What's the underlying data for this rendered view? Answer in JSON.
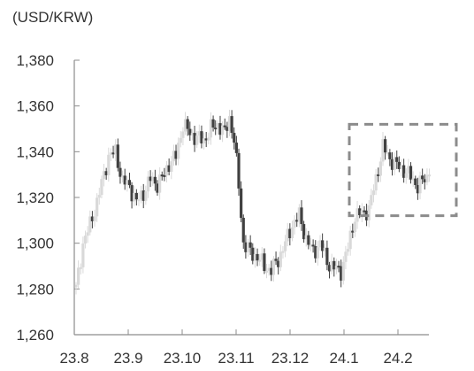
{
  "chart_data": {
    "type": "candlestick",
    "unit_label": "(USD/KRW)",
    "title": "",
    "xlabel": "",
    "ylabel": "",
    "ylim": [
      1260,
      1380
    ],
    "y_ticks": [
      "1,260",
      "1,280",
      "1,300",
      "1,320",
      "1,340",
      "1,360",
      "1,380"
    ],
    "y_tick_values": [
      1260,
      1280,
      1300,
      1320,
      1340,
      1360,
      1380
    ],
    "x_ticks": [
      "23.8",
      "23.9",
      "23.10",
      "23.11",
      "23.12",
      "24.1",
      "24.2"
    ],
    "grid": false,
    "legend": "none",
    "colors": {
      "up": "#d9d9d9",
      "down": "#404040",
      "axis": "#8c8c8c",
      "highlight_box": "#8c8c8c"
    },
    "highlight_box": {
      "x_start": "24.1",
      "x_end": "24.2+",
      "y_range": [
        1312,
        1352
      ]
    },
    "anchors": [
      [
        0,
        1280
      ],
      [
        3,
        1300
      ],
      [
        6,
        1308
      ],
      [
        9,
        1318
      ],
      [
        12,
        1330
      ],
      [
        14,
        1338
      ],
      [
        17,
        1340
      ],
      [
        20,
        1327
      ],
      [
        23,
        1325
      ],
      [
        26,
        1318
      ],
      [
        29,
        1322
      ],
      [
        32,
        1328
      ],
      [
        35,
        1326
      ],
      [
        38,
        1330
      ],
      [
        40,
        1335
      ],
      [
        43,
        1338
      ],
      [
        46,
        1352
      ],
      [
        49,
        1348
      ],
      [
        52,
        1346
      ],
      [
        55,
        1345
      ],
      [
        58,
        1350
      ],
      [
        61,
        1352
      ],
      [
        64,
        1348
      ],
      [
        66,
        1355
      ],
      [
        68,
        1345
      ],
      [
        70,
        1325
      ],
      [
        72,
        1300
      ],
      [
        75,
        1296
      ],
      [
        78,
        1294
      ],
      [
        81,
        1290
      ],
      [
        84,
        1288
      ],
      [
        87,
        1293
      ],
      [
        90,
        1300
      ],
      [
        93,
        1308
      ],
      [
        96,
        1312
      ],
      [
        99,
        1302
      ],
      [
        102,
        1296
      ],
      [
        105,
        1300
      ],
      [
        108,
        1292
      ],
      [
        111,
        1289
      ],
      [
        114,
        1288
      ],
      [
        117,
        1298
      ],
      [
        120,
        1312
      ],
      [
        123,
        1313
      ],
      [
        126,
        1315
      ],
      [
        129,
        1328
      ],
      [
        132,
        1342
      ],
      [
        135,
        1337
      ],
      [
        138,
        1334
      ],
      [
        141,
        1332
      ],
      [
        144,
        1329
      ],
      [
        147,
        1325
      ],
      [
        150,
        1328
      ],
      [
        152,
        1330
      ]
    ]
  }
}
